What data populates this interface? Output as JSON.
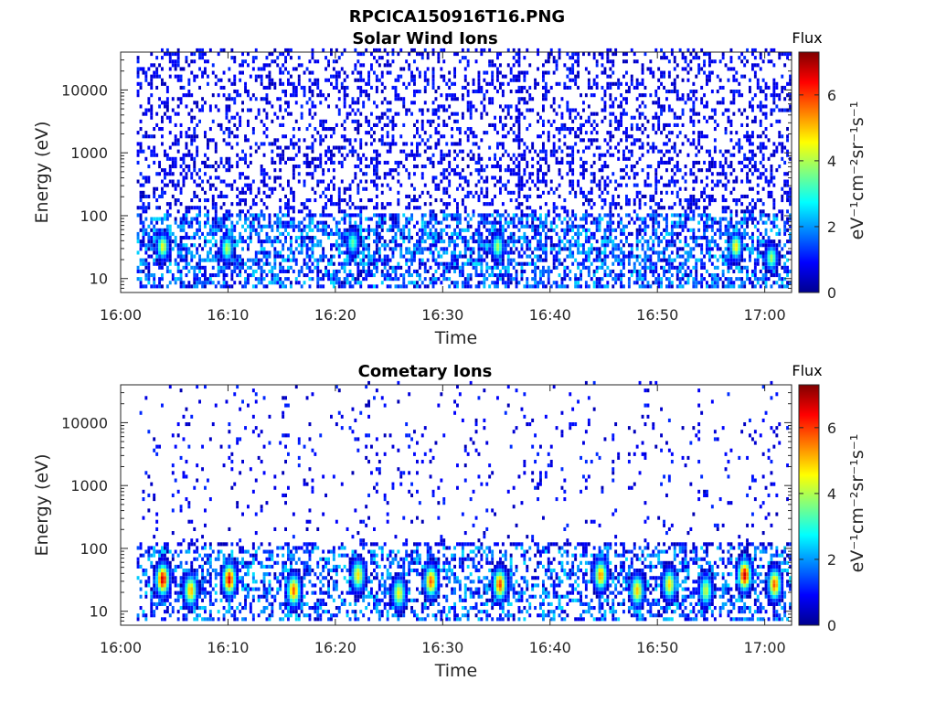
{
  "figure": {
    "title": "RPCICA150916T16.PNG"
  },
  "chart_data": [
    {
      "type": "heatmap",
      "title": "Solar Wind Ions",
      "xlabel": "Time",
      "ylabel": "Energy (eV)",
      "x_tick_labels": [
        "16:00",
        "16:10",
        "16:20",
        "16:30",
        "16:40",
        "16:50",
        "17:00"
      ],
      "x_range_minutes_after_16_00": [
        0,
        62.5
      ],
      "y_scale": "log",
      "y_tick_labels": [
        "10",
        "100",
        "1000",
        "10000"
      ],
      "y_ticks": [
        10,
        100,
        1000,
        10000
      ],
      "y_range": [
        6,
        40000
      ],
      "colorbar": {
        "title": "Flux",
        "label": "eV⁻¹cm⁻²sr⁻¹s⁻¹",
        "ticks": [
          0,
          2,
          4,
          6
        ],
        "tick_labels": [
          "0",
          "2",
          "4",
          "6"
        ],
        "range": [
          0,
          7.3
        ],
        "colormap": "jet"
      },
      "data_start_minute": 1.5,
      "sparse_dots": "scattered low-flux (blue) counts across all energies from ~10 eV to ~40000 eV",
      "hotspots_minute_energy_flux": [
        [
          3.8,
          30,
          4.5
        ],
        [
          9.8,
          28,
          4.2
        ],
        [
          21.5,
          35,
          3.5
        ],
        [
          35,
          30,
          4.0
        ],
        [
          57.2,
          30,
          4.8
        ],
        [
          60.5,
          20,
          4.0
        ]
      ],
      "vertical_stripe_minute": 37
    },
    {
      "type": "heatmap",
      "title": "Cometary Ions",
      "xlabel": "Time",
      "ylabel": "Energy (eV)",
      "x_tick_labels": [
        "16:00",
        "16:10",
        "16:20",
        "16:30",
        "16:40",
        "16:50",
        "17:00"
      ],
      "x_range_minutes_after_16_00": [
        0,
        62.5
      ],
      "y_scale": "log",
      "y_tick_labels": [
        "10",
        "100",
        "1000",
        "10000"
      ],
      "y_ticks": [
        10,
        100,
        1000,
        10000
      ],
      "y_range": [
        6,
        40000
      ],
      "colorbar": {
        "title": "Flux",
        "label": "eV⁻¹cm⁻²sr⁻¹s⁻¹",
        "ticks": [
          0,
          2,
          4,
          6
        ],
        "tick_labels": [
          "0",
          "2",
          "4",
          "6"
        ],
        "range": [
          0,
          7.3
        ],
        "colormap": "jet"
      },
      "data_start_minute": 1.5,
      "sparse_dots": "sparse low-flux counts above 100 eV in vertical streaks",
      "hotspots_minute_energy_flux": [
        [
          3.8,
          30,
          6.8
        ],
        [
          6.4,
          20,
          5.2
        ],
        [
          10.0,
          30,
          6.6
        ],
        [
          16.0,
          20,
          5.8
        ],
        [
          22.0,
          35,
          4.8
        ],
        [
          25.8,
          18,
          4.6
        ],
        [
          28.8,
          28,
          5.8
        ],
        [
          35.2,
          25,
          6.0
        ],
        [
          44.6,
          35,
          5.4
        ],
        [
          48.0,
          20,
          5.0
        ],
        [
          51.0,
          25,
          4.8
        ],
        [
          54.4,
          20,
          4.2
        ],
        [
          58.0,
          35,
          6.8
        ],
        [
          60.8,
          25,
          5.8
        ]
      ]
    }
  ]
}
